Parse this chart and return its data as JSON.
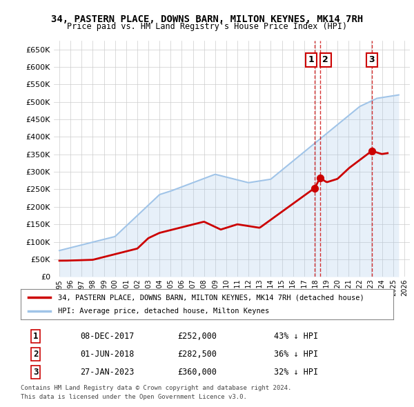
{
  "title1": "34, PASTERN PLACE, DOWNS BARN, MILTON KEYNES, MK14 7RH",
  "title2": "Price paid vs. HM Land Registry's House Price Index (HPI)",
  "ylabel_ticks": [
    "£0",
    "£50K",
    "£100K",
    "£150K",
    "£200K",
    "£250K",
    "£300K",
    "£350K",
    "£400K",
    "£450K",
    "£500K",
    "£550K",
    "£600K",
    "£650K"
  ],
  "ytick_values": [
    0,
    50000,
    100000,
    150000,
    200000,
    250000,
    300000,
    350000,
    400000,
    450000,
    500000,
    550000,
    600000,
    650000
  ],
  "xlim_min": 1994.5,
  "xlim_max": 2026.5,
  "ylim_min": 0,
  "ylim_max": 675000,
  "hpi_color": "#a0c4e8",
  "price_color": "#cc0000",
  "sale_marker_color": "#cc0000",
  "vline_color": "#cc0000",
  "legend_label_price": "34, PASTERN PLACE, DOWNS BARN, MILTON KEYNES, MK14 7RH (detached house)",
  "legend_label_hpi": "HPI: Average price, detached house, Milton Keynes",
  "sale1_date": "08-DEC-2017",
  "sale1_price": 252000,
  "sale1_pct": "43% ↓ HPI",
  "sale1_x": 2017.93,
  "sale2_date": "01-JUN-2018",
  "sale2_price": 282500,
  "sale2_pct": "36% ↓ HPI",
  "sale2_x": 2018.42,
  "sale3_date": "27-JAN-2023",
  "sale3_price": 360000,
  "sale3_pct": "32% ↓ HPI",
  "sale3_x": 2023.07,
  "footer1": "Contains HM Land Registry data © Crown copyright and database right 2024.",
  "footer2": "This data is licensed under the Open Government Licence v3.0.",
  "hpi_hatch_color": "#d0e8ff",
  "bg_color": "#ffffff"
}
